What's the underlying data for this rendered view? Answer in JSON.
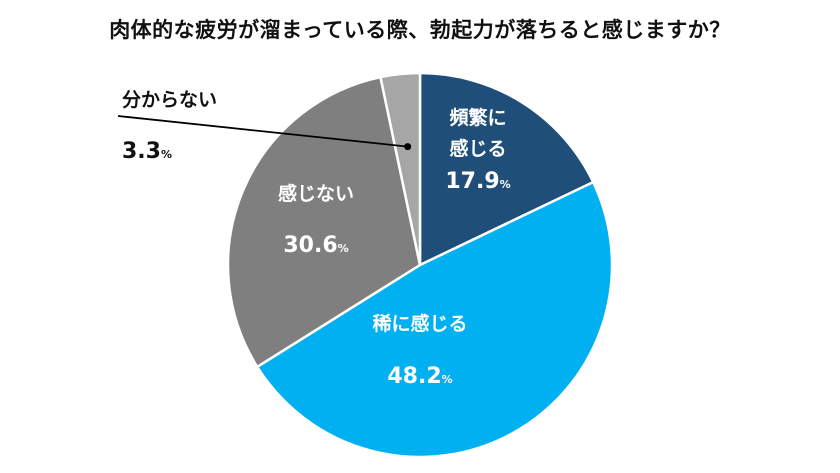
{
  "title": "肉体的な疲労が溜まっている際、勃起力が落ちると感じますか？",
  "chart_data": {
    "type": "pie",
    "title": "肉体的な疲労が溜まっている際、勃起力が落ちると感じますか？",
    "unit": "%",
    "slices": [
      {
        "label": "頻繁に感じる",
        "label_lines": [
          "頻繁に",
          "感じる"
        ],
        "value": 17.9,
        "value_text": "17.9",
        "color": "#1f4e79"
      },
      {
        "label": "稀に感じる",
        "label_lines": [
          "稀に感じる"
        ],
        "value": 48.2,
        "value_text": "48.2",
        "color": "#00b0f0"
      },
      {
        "label": "感じない",
        "label_lines": [
          "感じない"
        ],
        "value": 30.6,
        "value_text": "30.6",
        "color": "#7f7f7f"
      },
      {
        "label": "分からない",
        "label_lines": [
          "分からない"
        ],
        "value": 3.3,
        "value_text": "3.3",
        "color": "#a6a6a6"
      }
    ],
    "start": "12 o'clock",
    "direction": "clockwise"
  }
}
